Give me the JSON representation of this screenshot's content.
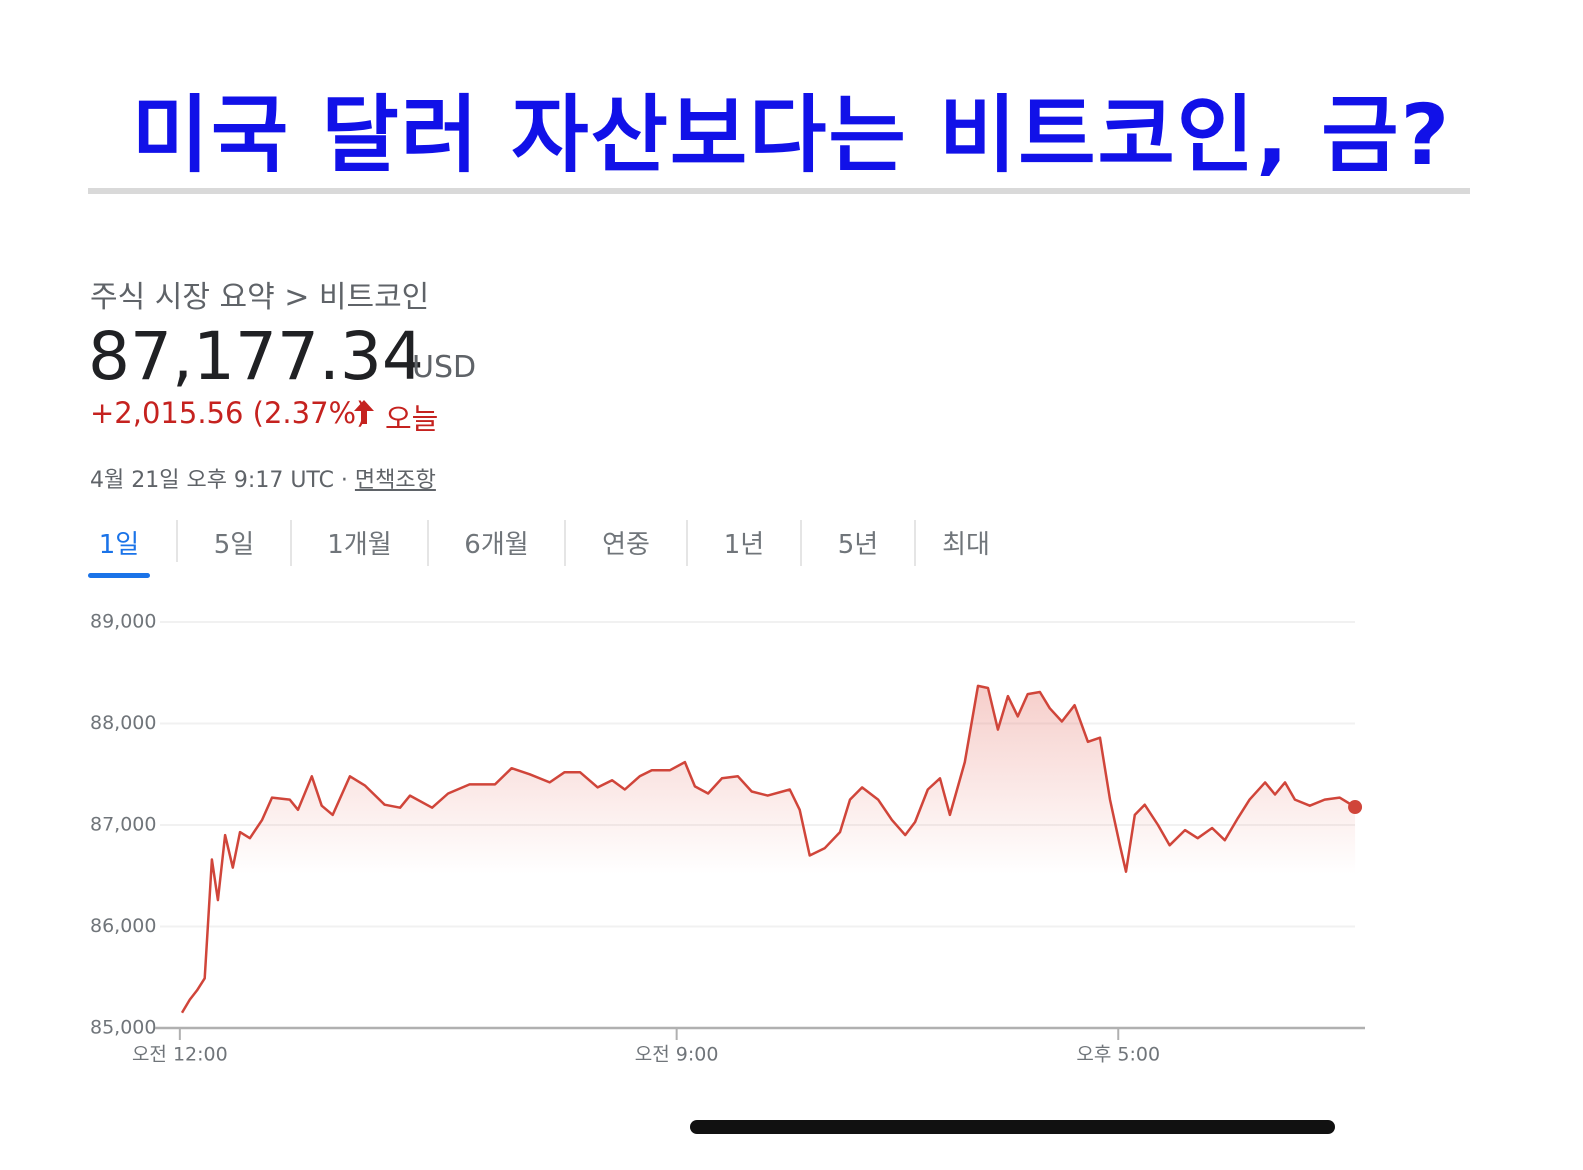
{
  "header": {
    "title": "미국 달러 자산보다는 비트코인, 금?"
  },
  "quote": {
    "breadcrumb": "주식 시장 요약 > 비트코인",
    "price": "87,177.34",
    "currency": "USD",
    "change": "+2,015.56 (2.37%)",
    "period": "오늘",
    "timestamp": "4월 21일 오후 9:17 UTC · ",
    "disclaimer": "면책조항"
  },
  "tabs": {
    "items": [
      "1일",
      "5일",
      "1개월",
      "6개월",
      "연중",
      "1년",
      "5년",
      "최대"
    ],
    "active": 0
  },
  "chart_data": {
    "type": "line",
    "x": [
      0.04,
      0.18,
      0.31,
      0.45,
      0.58,
      0.69,
      0.82,
      0.96,
      1.09,
      1.27,
      1.49,
      1.67,
      1.99,
      2.14,
      2.39,
      2.57,
      2.77,
      3.08,
      3.35,
      3.71,
      3.99,
      4.17,
      4.57,
      4.86,
      5.25,
      5.71,
      6.01,
      6.34,
      6.7,
      6.97,
      7.25,
      7.57,
      7.83,
      8.06,
      8.33,
      8.55,
      8.88,
      9.15,
      9.33,
      9.57,
      9.82,
      10.11,
      10.36,
      10.65,
      11.05,
      11.23,
      11.41,
      11.68,
      11.96,
      12.14,
      12.36,
      12.65,
      12.9,
      13.14,
      13.32,
      13.55,
      13.77,
      13.95,
      14.22,
      14.46,
      14.64,
      14.82,
      15.0,
      15.18,
      15.36,
      15.58,
      15.76,
      15.98,
      16.21,
      16.45,
      16.67,
      16.85,
      17.03,
      17.14,
      17.3,
      17.48,
      17.72,
      17.93,
      18.21,
      18.44,
      18.7,
      18.93,
      19.17,
      19.38,
      19.66,
      19.84,
      20.02,
      20.2,
      20.47,
      20.74,
      21.01,
      21.29
    ],
    "series": [
      {
        "name": "비트코인",
        "color": "#d0453a",
        "values": [
          85150,
          85280,
          85370,
          85490,
          86660,
          86260,
          86900,
          86580,
          86930,
          86870,
          87050,
          87270,
          87250,
          87150,
          87480,
          87190,
          87100,
          87480,
          87390,
          87200,
          87170,
          87290,
          87170,
          87310,
          87400,
          87400,
          87560,
          87500,
          87420,
          87520,
          87520,
          87370,
          87440,
          87350,
          87480,
          87540,
          87540,
          87620,
          87380,
          87310,
          87460,
          87480,
          87330,
          87290,
          87350,
          87150,
          86700,
          86770,
          86930,
          87250,
          87370,
          87250,
          87050,
          86900,
          87030,
          87350,
          87460,
          87100,
          87620,
          88370,
          88350,
          87940,
          88270,
          88070,
          88290,
          88310,
          88150,
          88020,
          88180,
          87820,
          87860,
          87250,
          86800,
          86540,
          87100,
          87200,
          87000,
          86800,
          86950,
          86870,
          86970,
          86850,
          87070,
          87250,
          87420,
          87300,
          87420,
          87250,
          87190,
          87250,
          87270,
          87177
        ]
      }
    ],
    "xlim": [
      -0.45,
      21.47
    ],
    "xticks": [
      {
        "value": 0,
        "label": "오전 12:00"
      },
      {
        "value": 9,
        "label": "오전 9:00"
      },
      {
        "value": 17,
        "label": "오후 5:00"
      }
    ],
    "ylim": [
      85000,
      89000
    ],
    "yticks": [
      {
        "value": 85000,
        "label": "85,000"
      },
      {
        "value": 86000,
        "label": "86,000"
      },
      {
        "value": 87000,
        "label": "87,000"
      },
      {
        "value": 88000,
        "label": "88,000"
      },
      {
        "value": 89000,
        "label": "89,000"
      }
    ],
    "grid": true
  }
}
